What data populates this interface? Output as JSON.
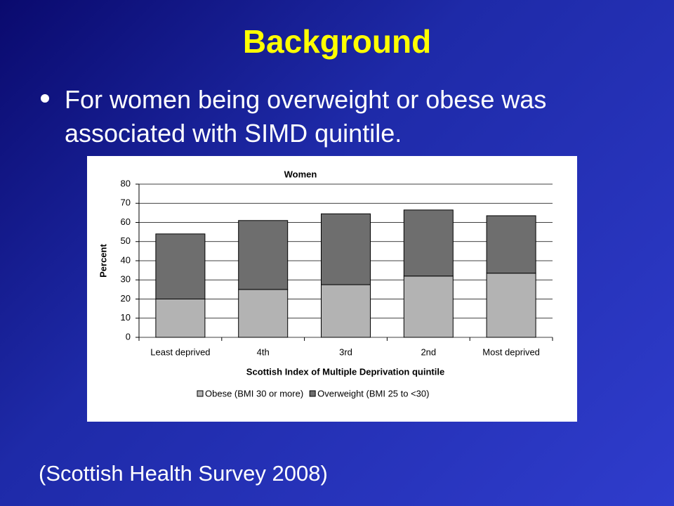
{
  "slide": {
    "title": "Background",
    "bullet": "For women being overweight or obese was associated with SIMD quintile.",
    "source": "(Scottish Health Survey 2008)"
  },
  "chart_data": {
    "type": "stacked_bar",
    "title": "Women",
    "x_label": "Scottish Index of Multiple Deprivation quintile",
    "y_label": "Percent",
    "categories": [
      "Least deprived",
      "4th",
      "3rd",
      "2nd",
      "Most deprived"
    ],
    "series": [
      {
        "name": "Obese (BMI 30 or more)",
        "color": "#b3b3b3",
        "values": [
          20,
          25,
          27.5,
          32,
          33.5
        ]
      },
      {
        "name": "Overweight (BMI 25 to <30)",
        "color": "#6e6e6e",
        "values": [
          34,
          36,
          37,
          34.5,
          30
        ]
      }
    ],
    "ylim": [
      0,
      80
    ],
    "yticks": [
      0,
      10,
      20,
      30,
      40,
      50,
      60,
      70,
      80
    ],
    "grid": true,
    "legend": "bottom"
  }
}
